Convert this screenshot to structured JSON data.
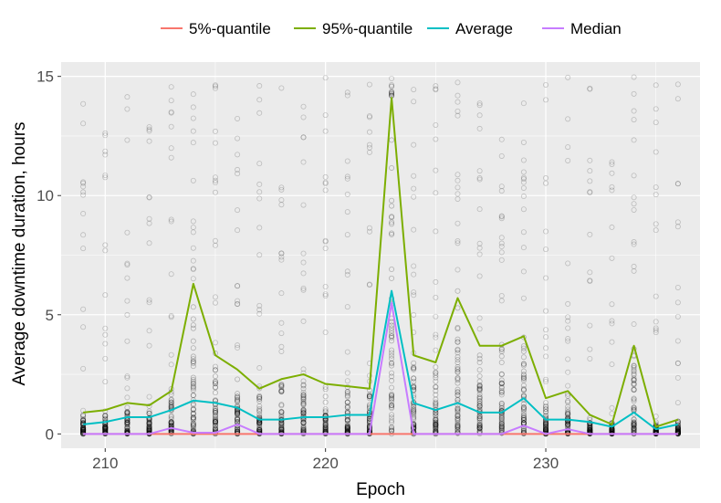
{
  "chart_data": {
    "type": "line",
    "xlabel": "Epoch",
    "ylabel": "Average downtime duration, hours",
    "xlim": [
      208,
      237
    ],
    "ylim": [
      -0.6,
      15.6
    ],
    "x_ticks": [
      210,
      220,
      230
    ],
    "y_ticks": [
      0,
      5,
      10,
      15
    ],
    "x_tick_labels": [
      "210",
      "220",
      "230"
    ],
    "y_tick_labels": [
      "0",
      "5",
      "10",
      "15"
    ],
    "grid": true,
    "legend_position": "top",
    "x": [
      209,
      210,
      211,
      212,
      213,
      214,
      215,
      216,
      217,
      218,
      219,
      220,
      221,
      222,
      223,
      224,
      225,
      226,
      227,
      228,
      229,
      230,
      231,
      232,
      233,
      234,
      235,
      236
    ],
    "series": [
      {
        "name": "5%-quantile",
        "color": "#f8766d",
        "values": [
          0,
          0,
          0,
          0,
          0,
          0,
          0,
          0,
          0,
          0,
          0,
          0,
          0,
          0,
          0,
          0,
          0,
          0,
          0,
          0,
          0,
          0,
          0,
          0,
          0,
          0,
          0,
          0
        ]
      },
      {
        "name": "95%-quantile",
        "color": "#7cae00",
        "values": [
          0.9,
          1.0,
          1.3,
          1.2,
          1.8,
          6.3,
          3.3,
          2.7,
          1.9,
          2.3,
          2.5,
          2.1,
          2.0,
          1.9,
          14.1,
          3.3,
          3.0,
          5.7,
          3.7,
          3.7,
          4.1,
          1.5,
          1.8,
          0.8,
          0.4,
          3.7,
          0.3,
          0.6
        ]
      },
      {
        "name": "Average",
        "color": "#00bfc4",
        "values": [
          0.4,
          0.5,
          0.7,
          0.7,
          1.0,
          1.4,
          1.3,
          1.1,
          0.6,
          0.6,
          0.7,
          0.7,
          0.8,
          0.8,
          6.0,
          1.3,
          1.0,
          1.3,
          0.9,
          0.9,
          1.5,
          0.6,
          0.6,
          0.5,
          0.3,
          0.9,
          0.2,
          0.4
        ]
      },
      {
        "name": "Median",
        "color": "#c77cff",
        "values": [
          0,
          0,
          0,
          0,
          0.25,
          0.05,
          0.05,
          0.4,
          0,
          0,
          0,
          0,
          0,
          0,
          5.5,
          0,
          0,
          0,
          0,
          0,
          0.35,
          0,
          0.2,
          0,
          0,
          0,
          0,
          0
        ]
      }
    ],
    "scatter_color": "#000000"
  }
}
